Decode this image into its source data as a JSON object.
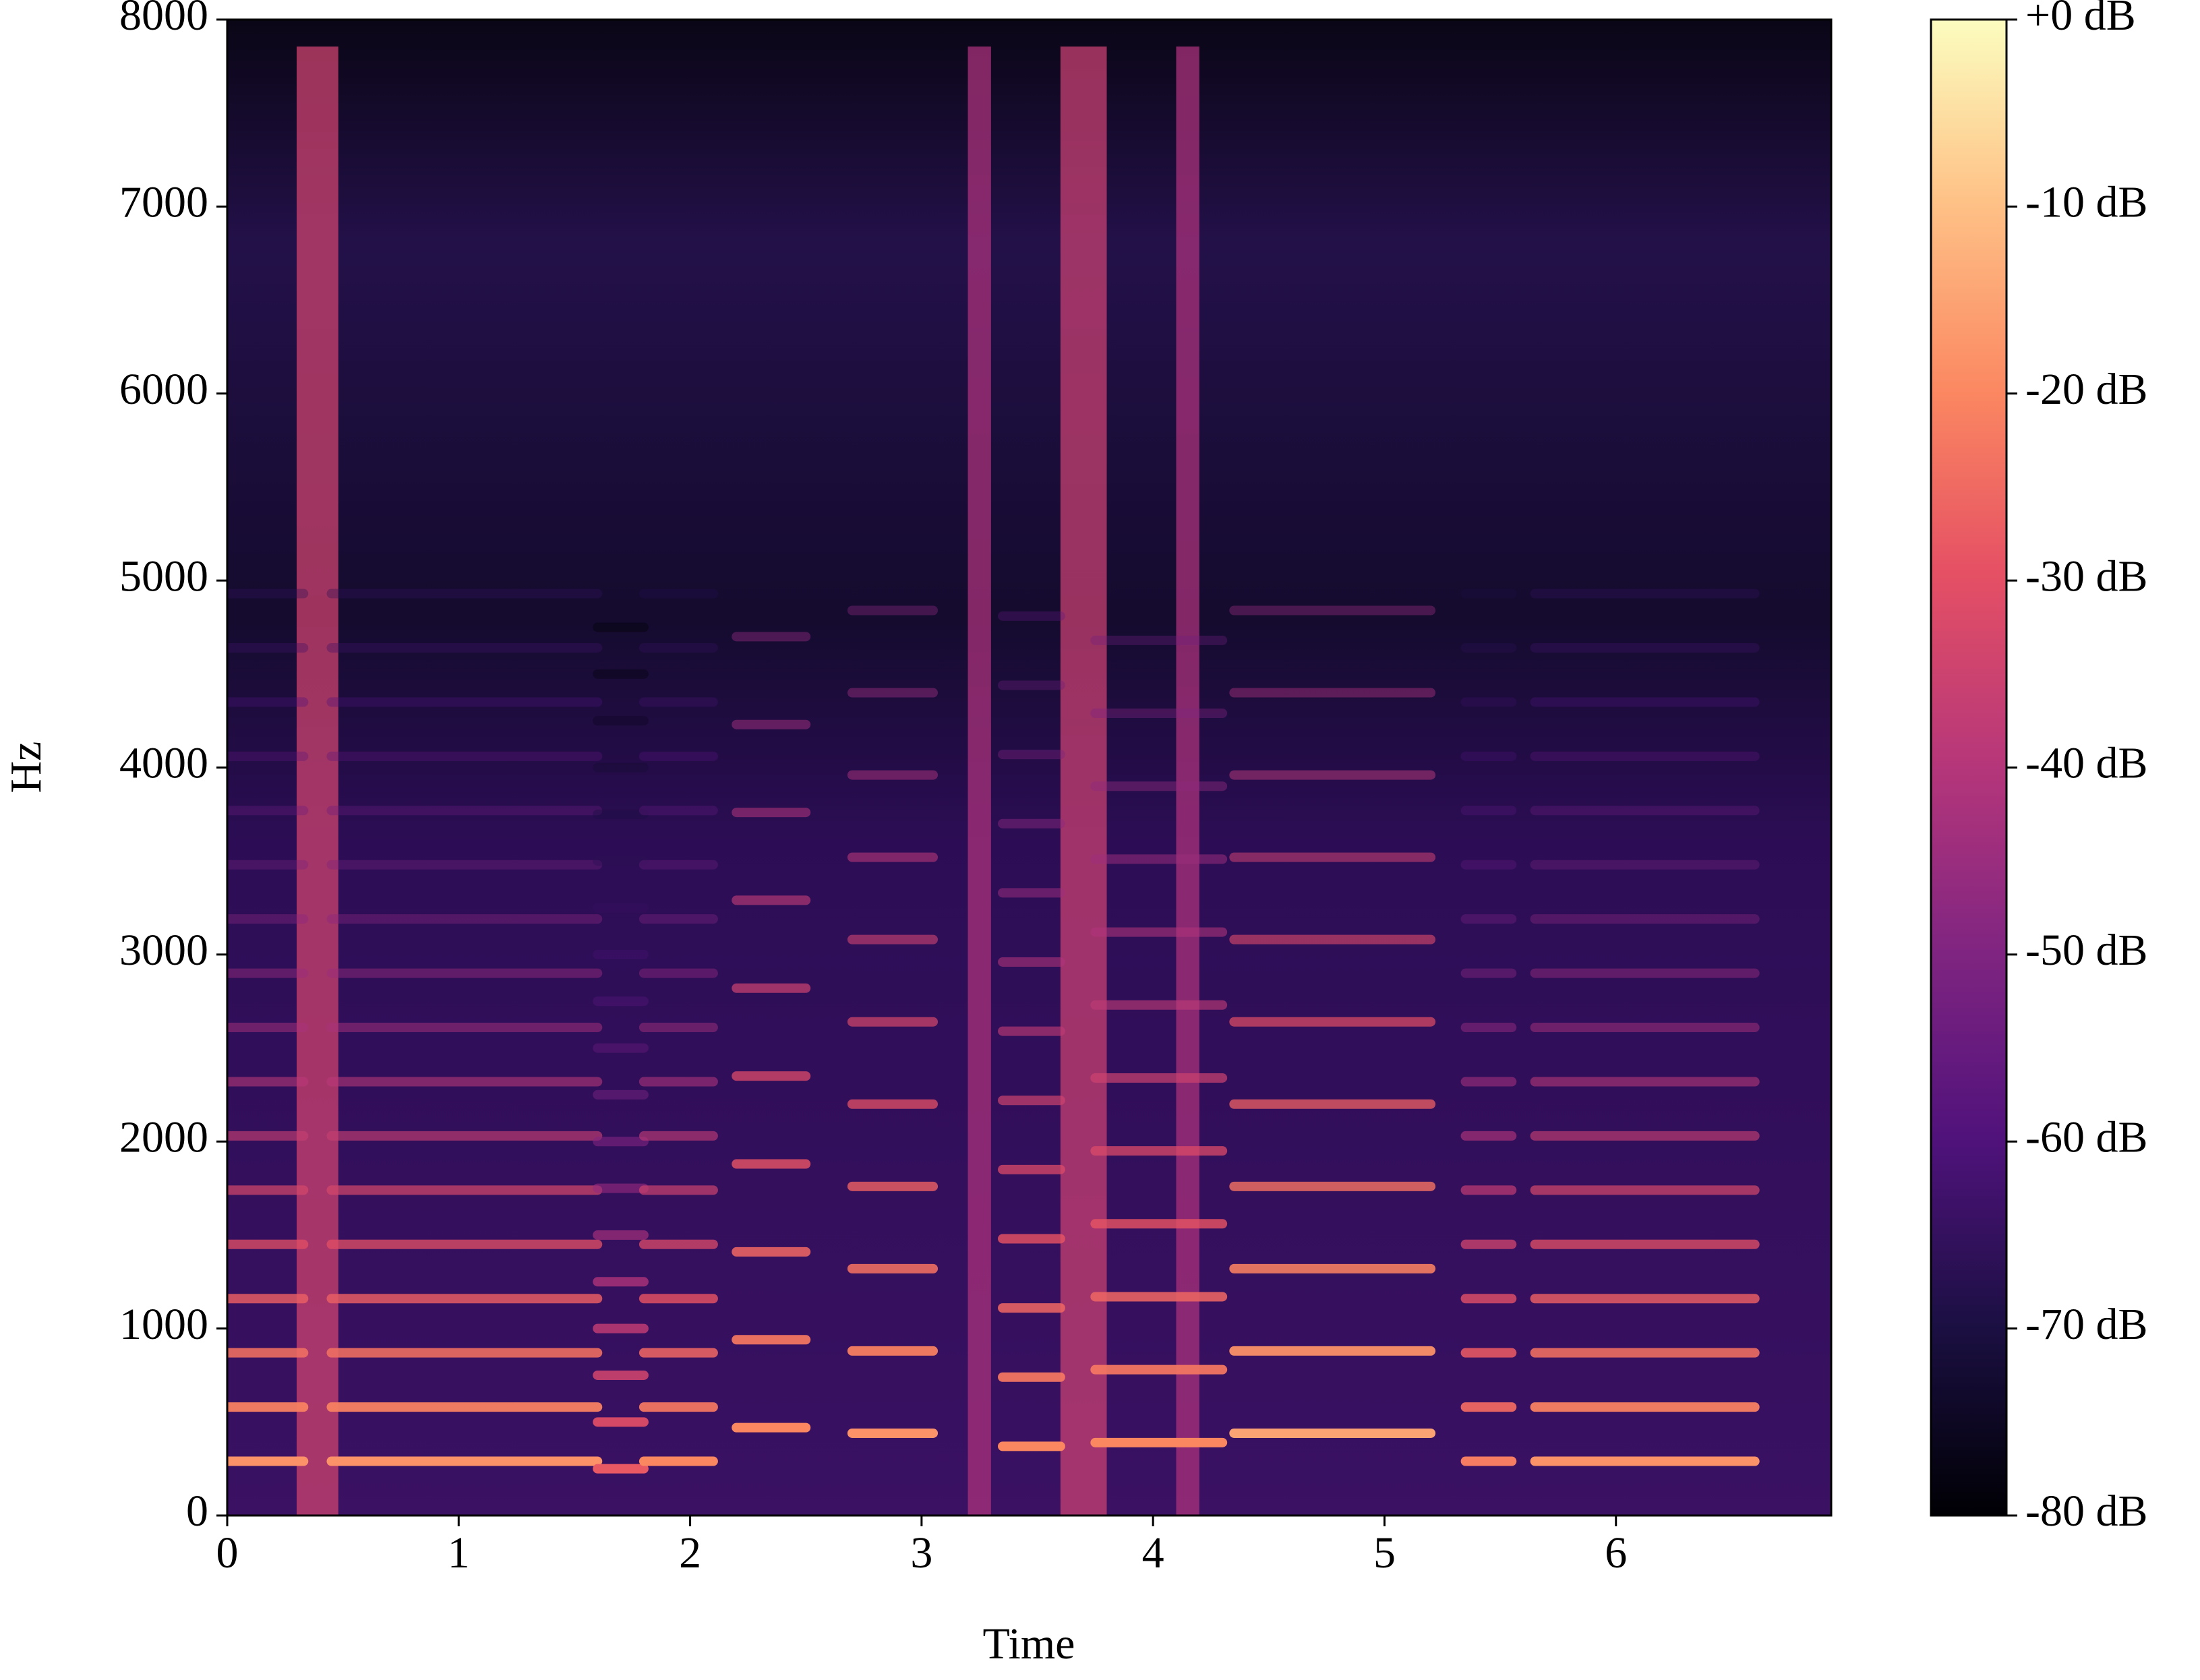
{
  "chart_data": {
    "type": "spectrogram",
    "xlabel": "Time",
    "ylabel": "Hz",
    "xlim": [
      0,
      6.93
    ],
    "xticks": [
      0,
      1,
      2,
      3,
      4,
      5,
      6
    ],
    "ylim": [
      0,
      8000
    ],
    "yticks": [
      0,
      1000,
      2000,
      3000,
      4000,
      5000,
      6000,
      7000,
      8000
    ],
    "colormap": "magma",
    "clim": [
      -80,
      0
    ],
    "cticks": [
      {
        "value": 0,
        "label": "+0 dB"
      },
      {
        "value": -10,
        "label": "-10 dB"
      },
      {
        "value": -20,
        "label": "-20 dB"
      },
      {
        "value": -30,
        "label": "-30 dB"
      },
      {
        "value": -40,
        "label": "-40 dB"
      },
      {
        "value": -50,
        "label": "-50 dB"
      },
      {
        "value": -60,
        "label": "-60 dB"
      },
      {
        "value": -70,
        "label": "-70 dB"
      },
      {
        "value": -80,
        "label": "-80 dB"
      }
    ],
    "notes": [
      {
        "start": 0,
        "end": 0.33,
        "f0": 290,
        "level": -18
      },
      {
        "start": 0.45,
        "end": 1.6,
        "f0": 290,
        "level": -18
      },
      {
        "start": 1.6,
        "end": 1.8,
        "f0": 250,
        "level": -28
      },
      {
        "start": 1.8,
        "end": 2.1,
        "f0": 290,
        "level": -20
      },
      {
        "start": 2.2,
        "end": 2.5,
        "f0": 470,
        "level": -20
      },
      {
        "start": 2.7,
        "end": 3.05,
        "f0": 440,
        "level": -18
      },
      {
        "start": 3.35,
        "end": 3.6,
        "f0": 370,
        "level": -20
      },
      {
        "start": 3.75,
        "end": 4.3,
        "f0": 390,
        "level": -20
      },
      {
        "start": 4.35,
        "end": 5.2,
        "f0": 440,
        "level": -15
      },
      {
        "start": 5.35,
        "end": 5.55,
        "f0": 290,
        "level": -22
      },
      {
        "start": 5.65,
        "end": 6.6,
        "f0": 290,
        "level": -18
      }
    ],
    "broadband": [
      {
        "start": 0.3,
        "end": 0.48,
        "level": -35
      },
      {
        "start": 3.2,
        "end": 3.3,
        "level": -42
      },
      {
        "start": 3.6,
        "end": 3.8,
        "level": -36
      },
      {
        "start": 4.1,
        "end": 4.2,
        "level": -42
      }
    ]
  }
}
